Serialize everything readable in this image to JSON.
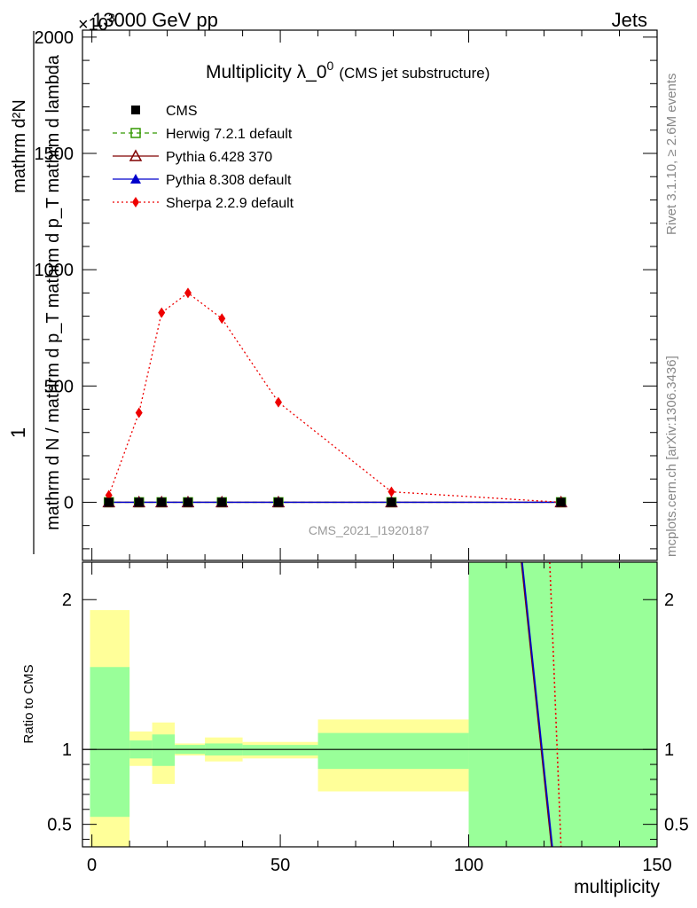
{
  "header": {
    "left": "13000 GeV pp",
    "right": "Jets"
  },
  "side_labels": {
    "rivet": "Rivet 3.1.10, ≥ 2.6M events",
    "mcplots": "mcplots.cern.ch [arXiv:1306.3436]"
  },
  "chart_data": [
    {
      "type": "line",
      "title": "Multiplicity λ_0",
      "title_superscript": "0",
      "title_suffix": "(CMS jet substructure)",
      "analysis_label": "CMS_2021_I1920187",
      "y_exponent_label": "×10",
      "y_exponent_superscript": "3",
      "ylabel": {
        "fraction_numerator": "1",
        "fraction_denominator": "mathrm d N / mathrm d p_T mathrm d p_T mathrm d lambda",
        "numerator_term": "mathrm d²N"
      },
      "xlim": [
        -2.5,
        150
      ],
      "ylim": [
        -250,
        2030
      ],
      "yticks": [
        0,
        500,
        1000,
        1500,
        2000
      ],
      "ytick_labels": [
        "0",
        "500",
        "1000",
        "1500",
        "2000"
      ],
      "legend_placement": "top-left",
      "series": [
        {
          "name": "CMS",
          "color": "#000000",
          "marker": "square-filled",
          "x": [
            4.5,
            12.5,
            18.5,
            25.5,
            34.5,
            49.5,
            79.5,
            124.5
          ],
          "y": [
            0,
            0,
            0,
            0,
            0,
            0,
            0,
            0
          ]
        },
        {
          "name": "Herwig 7.2.1 default",
          "color": "#339900",
          "marker": "square-open",
          "line": "dashed",
          "x": [
            4.5,
            12.5,
            18.5,
            25.5,
            34.5,
            49.5,
            79.5,
            124.5
          ],
          "y": [
            0,
            0,
            0,
            0,
            0,
            0,
            0,
            0
          ]
        },
        {
          "name": "Pythia 6.428 370",
          "color": "#800000",
          "marker": "triangle-open",
          "line": "solid",
          "x": [
            4.5,
            12.5,
            18.5,
            25.5,
            34.5,
            49.5,
            79.5,
            124.5
          ],
          "y": [
            0,
            0,
            0,
            0,
            0,
            0,
            0,
            0
          ]
        },
        {
          "name": "Pythia 8.308 default",
          "color": "#0000cc",
          "marker": "triangle-filled",
          "line": "solid",
          "x": [
            4.5,
            12.5,
            18.5,
            25.5,
            34.5,
            49.5,
            79.5,
            124.5
          ],
          "y": [
            0,
            0,
            0,
            0,
            0,
            0,
            0,
            0
          ]
        },
        {
          "name": "Sherpa 2.2.9 default",
          "color": "#ee0000",
          "marker": "diamond-filled",
          "line": "dotted",
          "x": [
            4.5,
            12.5,
            18.5,
            25.5,
            34.5,
            49.5,
            79.5,
            124.5
          ],
          "y": [
            30,
            385,
            815,
            900,
            790,
            430,
            45,
            0
          ]
        }
      ]
    },
    {
      "type": "area",
      "ylabel": "Ratio to CMS",
      "xlabel": "multiplicity",
      "xlim": [
        -2.5,
        150
      ],
      "ylim": [
        0.35,
        2.25
      ],
      "xticks": [
        0,
        50,
        100,
        150
      ],
      "xtick_labels": [
        "0",
        "50",
        "100",
        "150"
      ],
      "yticks": [
        0.5,
        1,
        2
      ],
      "ytick_labels": [
        "0.5",
        "1",
        "2"
      ],
      "bands": {
        "yellow_color": "#ffff99",
        "green_color": "#99ff99",
        "bins": [
          {
            "x0": -0.5,
            "x1": 10,
            "yellow": [
              0.35,
              1.93
            ],
            "green": [
              0.55,
              1.55
            ]
          },
          {
            "x0": 10,
            "x1": 16,
            "yellow": [
              0.89,
              1.12
            ],
            "green": [
              0.94,
              1.06
            ]
          },
          {
            "x0": 16,
            "x1": 22,
            "yellow": [
              0.77,
              1.18
            ],
            "green": [
              0.89,
              1.1
            ]
          },
          {
            "x0": 22,
            "x1": 30,
            "yellow": [
              0.96,
              1.04
            ],
            "green": [
              0.97,
              1.03
            ]
          },
          {
            "x0": 30,
            "x1": 40,
            "yellow": [
              0.92,
              1.08
            ],
            "green": [
              0.96,
              1.04
            ]
          },
          {
            "x0": 40,
            "x1": 60,
            "yellow": [
              0.94,
              1.05
            ],
            "green": [
              0.96,
              1.03
            ]
          },
          {
            "x0": 60,
            "x1": 100,
            "yellow": [
              0.72,
              1.2
            ],
            "green": [
              0.87,
              1.11
            ]
          },
          {
            "x0": 100,
            "x1": 150,
            "yellow": [
              0.35,
              2.25
            ],
            "green": [
              0.35,
              2.25
            ]
          }
        ]
      },
      "series": [
        {
          "name": "Pythia 6.428 370",
          "color": "#800000",
          "line": "solid",
          "x": [
            114,
            122
          ],
          "y": [
            2.25,
            0.35
          ]
        },
        {
          "name": "Pythia 8.308 default",
          "color": "#0000cc",
          "line": "solid",
          "x": [
            114.2,
            122.2
          ],
          "y": [
            2.25,
            0.35
          ]
        },
        {
          "name": "Sherpa 2.2.9 default",
          "color": "#ee0000",
          "line": "dotted",
          "x": [
            121.5,
            124.5
          ],
          "y": [
            2.25,
            0.35
          ]
        }
      ]
    }
  ]
}
